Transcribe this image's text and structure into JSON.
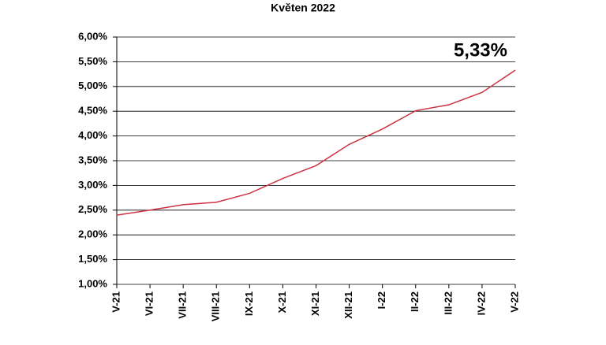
{
  "chart_data": {
    "type": "line",
    "title": "Květen 2022",
    "categories": [
      "V-21",
      "VI-21",
      "VII-21",
      "VIII-21",
      "IX-21",
      "X-21",
      "XI-21",
      "XII-21",
      "I-22",
      "II-22",
      "III-22",
      "IV-22",
      "V-22"
    ],
    "values": [
      2.4,
      2.5,
      2.61,
      2.66,
      2.84,
      3.14,
      3.4,
      3.83,
      4.14,
      4.51,
      4.63,
      4.88,
      5.33
    ],
    "color": "#cc3344",
    "annotation": "5,33%",
    "ylim": [
      1,
      6
    ],
    "yticks": [
      {
        "value": 1,
        "label": "1,00%"
      },
      {
        "value": 1.5,
        "label": "1,50%"
      },
      {
        "value": 2,
        "label": "2,00%"
      },
      {
        "value": 2.5,
        "label": "2,50%"
      },
      {
        "value": 3,
        "label": "3,00%"
      },
      {
        "value": 3.5,
        "label": "3,50%"
      },
      {
        "value": 4,
        "label": "4,00%"
      },
      {
        "value": 4.5,
        "label": "4,50%"
      },
      {
        "value": 5,
        "label": "5,00%"
      },
      {
        "value": 5.5,
        "label": "5,50%"
      },
      {
        "value": 6,
        "label": "6,00%"
      }
    ],
    "grid": true
  }
}
